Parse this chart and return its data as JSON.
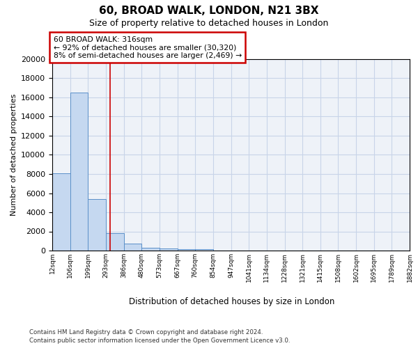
{
  "title1": "60, BROAD WALK, LONDON, N21 3BX",
  "title2": "Size of property relative to detached houses in London",
  "xlabel": "Distribution of detached houses by size in London",
  "ylabel": "Number of detached properties",
  "bar_edges": [
    12,
    106,
    199,
    293,
    386,
    480,
    573,
    667,
    760,
    854,
    947,
    1041,
    1134,
    1228,
    1321,
    1415,
    1508,
    1602,
    1695,
    1789,
    1882
  ],
  "bar_heights": [
    8100,
    16500,
    5400,
    1800,
    700,
    320,
    200,
    170,
    130,
    0,
    0,
    0,
    0,
    0,
    0,
    0,
    0,
    0,
    0,
    0
  ],
  "bar_color": "#c5d8f0",
  "bar_edge_color": "#5a8fc8",
  "grid_color": "#c8d4e8",
  "vline_x": 316,
  "vline_color": "#cc0000",
  "annotation_title": "60 BROAD WALK: 316sqm",
  "annotation_line2": "← 92% of detached houses are smaller (30,320)",
  "annotation_line3": "8% of semi-detached houses are larger (2,469) →",
  "annotation_box_color": "#cc0000",
  "annotation_fill": "#ffffff",
  "ylim": [
    0,
    20000
  ],
  "yticks": [
    0,
    2000,
    4000,
    6000,
    8000,
    10000,
    12000,
    14000,
    16000,
    18000,
    20000
  ],
  "tick_labels": [
    "12sqm",
    "106sqm",
    "199sqm",
    "293sqm",
    "386sqm",
    "480sqm",
    "573sqm",
    "667sqm",
    "760sqm",
    "854sqm",
    "947sqm",
    "1041sqm",
    "1134sqm",
    "1228sqm",
    "1321sqm",
    "1415sqm",
    "1508sqm",
    "1602sqm",
    "1695sqm",
    "1789sqm",
    "1882sqm"
  ],
  "footer1": "Contains HM Land Registry data © Crown copyright and database right 2024.",
  "footer2": "Contains public sector information licensed under the Open Government Licence v3.0.",
  "bg_color": "#eef2f8"
}
